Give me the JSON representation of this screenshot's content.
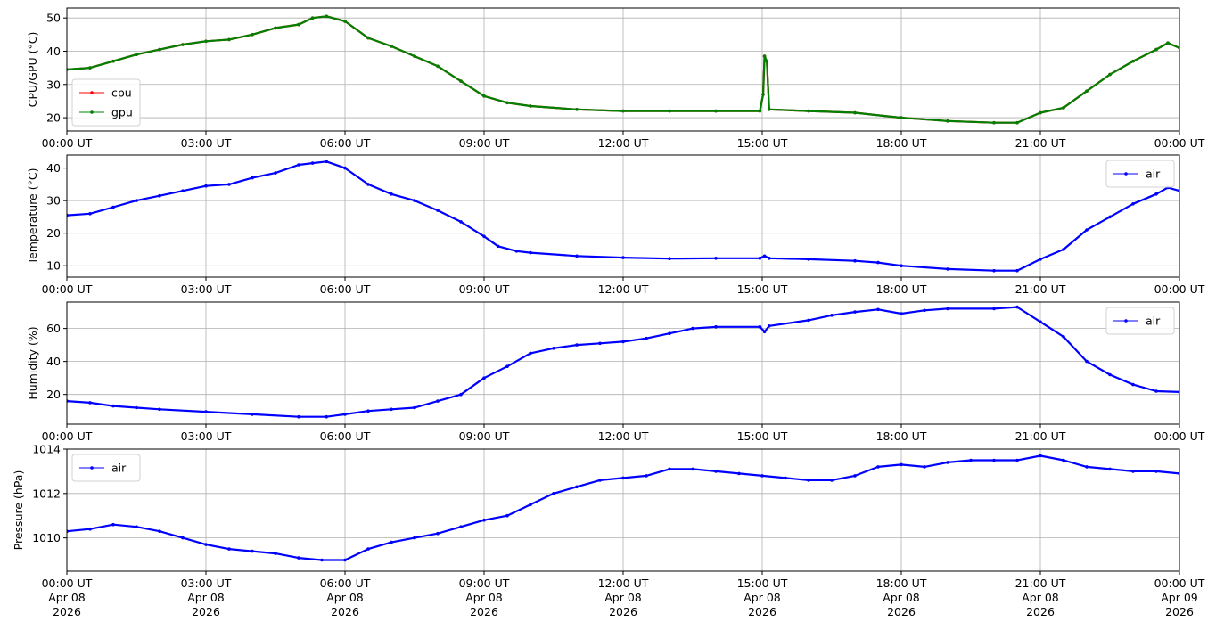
{
  "chart_data": [
    {
      "type": "line",
      "ylabel": "CPU/GPU (°C)",
      "xlim": [
        0,
        24
      ],
      "ylim": [
        16,
        53
      ],
      "yticks": [
        20,
        30,
        40,
        50
      ],
      "grid": true,
      "legend": "lower-left",
      "series": [
        {
          "name": "cpu",
          "color": "#ff0000",
          "points": [
            [
              0,
              34.5
            ],
            [
              0.5,
              35
            ],
            [
              1,
              37
            ],
            [
              1.5,
              39
            ],
            [
              2,
              40.5
            ],
            [
              2.5,
              42
            ],
            [
              3,
              43
            ],
            [
              3.5,
              43.5
            ],
            [
              4,
              45
            ],
            [
              4.5,
              47
            ],
            [
              5,
              48
            ],
            [
              5.3,
              50
            ],
            [
              5.6,
              50.5
            ],
            [
              6,
              49
            ],
            [
              6.5,
              44
            ],
            [
              7,
              41.5
            ],
            [
              7.5,
              38.5
            ],
            [
              8,
              35.5
            ],
            [
              8.5,
              31
            ],
            [
              9,
              26.5
            ],
            [
              9.5,
              24.5
            ],
            [
              10,
              23.5
            ],
            [
              11,
              22.5
            ],
            [
              12,
              22
            ],
            [
              13,
              22
            ],
            [
              14,
              22
            ],
            [
              14.95,
              22
            ],
            [
              15.02,
              27
            ],
            [
              15.05,
              38.5
            ],
            [
              15.1,
              37
            ],
            [
              15.15,
              22.5
            ],
            [
              16,
              22
            ],
            [
              17,
              21.5
            ],
            [
              18,
              20
            ],
            [
              19,
              19
            ],
            [
              20,
              18.5
            ],
            [
              20.5,
              18.5
            ],
            [
              21,
              21.5
            ],
            [
              21.5,
              23
            ],
            [
              22,
              28
            ],
            [
              22.5,
              33
            ],
            [
              23,
              37
            ],
            [
              23.5,
              40.5
            ],
            [
              23.75,
              42.5
            ],
            [
              24,
              41
            ]
          ]
        },
        {
          "name": "gpu",
          "color": "#008000",
          "points": [
            [
              0,
              34.5
            ],
            [
              0.5,
              35
            ],
            [
              1,
              37
            ],
            [
              1.5,
              39
            ],
            [
              2,
              40.5
            ],
            [
              2.5,
              42
            ],
            [
              3,
              43
            ],
            [
              3.5,
              43.5
            ],
            [
              4,
              45
            ],
            [
              4.5,
              47
            ],
            [
              5,
              48
            ],
            [
              5.3,
              50
            ],
            [
              5.6,
              50.5
            ],
            [
              6,
              49
            ],
            [
              6.5,
              44
            ],
            [
              7,
              41.5
            ],
            [
              7.5,
              38.5
            ],
            [
              8,
              35.5
            ],
            [
              8.5,
              31
            ],
            [
              9,
              26.5
            ],
            [
              9.5,
              24.5
            ],
            [
              10,
              23.5
            ],
            [
              11,
              22.5
            ],
            [
              12,
              22
            ],
            [
              13,
              22
            ],
            [
              14,
              22
            ],
            [
              14.95,
              22
            ],
            [
              15.02,
              27
            ],
            [
              15.05,
              38.5
            ],
            [
              15.1,
              37
            ],
            [
              15.15,
              22.5
            ],
            [
              16,
              22
            ],
            [
              17,
              21.5
            ],
            [
              18,
              20
            ],
            [
              19,
              19
            ],
            [
              20,
              18.5
            ],
            [
              20.5,
              18.5
            ],
            [
              21,
              21.5
            ],
            [
              21.5,
              23
            ],
            [
              22,
              28
            ],
            [
              22.5,
              33
            ],
            [
              23,
              37
            ],
            [
              23.5,
              40.5
            ],
            [
              23.75,
              42.5
            ],
            [
              24,
              41
            ]
          ]
        }
      ]
    },
    {
      "type": "line",
      "ylabel": "Temperature (°C)",
      "xlim": [
        0,
        24
      ],
      "ylim": [
        6.5,
        44
      ],
      "yticks": [
        10,
        20,
        30,
        40
      ],
      "grid": true,
      "legend": "top-right",
      "series": [
        {
          "name": "air",
          "color": "#0000ff",
          "points": [
            [
              0,
              25.5
            ],
            [
              0.5,
              26
            ],
            [
              1,
              28
            ],
            [
              1.5,
              30
            ],
            [
              2,
              31.5
            ],
            [
              2.5,
              33
            ],
            [
              3,
              34.5
            ],
            [
              3.5,
              35
            ],
            [
              4,
              37
            ],
            [
              4.5,
              38.5
            ],
            [
              5,
              41
            ],
            [
              5.3,
              41.5
            ],
            [
              5.6,
              42
            ],
            [
              6,
              40
            ],
            [
              6.5,
              35
            ],
            [
              7,
              32
            ],
            [
              7.5,
              30
            ],
            [
              8,
              27
            ],
            [
              8.5,
              23.5
            ],
            [
              9,
              19
            ],
            [
              9.3,
              16
            ],
            [
              9.7,
              14.5
            ],
            [
              10,
              14
            ],
            [
              11,
              13
            ],
            [
              12,
              12.5
            ],
            [
              13,
              12.2
            ],
            [
              14,
              12.3
            ],
            [
              14.95,
              12.3
            ],
            [
              15.05,
              13
            ],
            [
              15.15,
              12.3
            ],
            [
              16,
              12
            ],
            [
              17,
              11.5
            ],
            [
              17.5,
              11
            ],
            [
              18,
              10
            ],
            [
              19,
              9
            ],
            [
              20,
              8.5
            ],
            [
              20.5,
              8.5
            ],
            [
              21,
              12
            ],
            [
              21.5,
              15
            ],
            [
              22,
              21
            ],
            [
              22.5,
              25
            ],
            [
              23,
              29
            ],
            [
              23.5,
              32
            ],
            [
              23.75,
              34
            ],
            [
              24,
              33
            ]
          ]
        }
      ]
    },
    {
      "type": "line",
      "ylabel": "Humidity (%)",
      "xlim": [
        0,
        24
      ],
      "ylim": [
        2,
        76
      ],
      "yticks": [
        20,
        40,
        60
      ],
      "grid": true,
      "legend": "top-right",
      "series": [
        {
          "name": "air",
          "color": "#0000ff",
          "points": [
            [
              0,
              16
            ],
            [
              0.5,
              15
            ],
            [
              1,
              13
            ],
            [
              1.5,
              12
            ],
            [
              2,
              11
            ],
            [
              3,
              9.5
            ],
            [
              4,
              8
            ],
            [
              5,
              6.5
            ],
            [
              5.6,
              6.5
            ],
            [
              6,
              8
            ],
            [
              6.5,
              10
            ],
            [
              7,
              11
            ],
            [
              7.5,
              12
            ],
            [
              8,
              16
            ],
            [
              8.5,
              20
            ],
            [
              9,
              30
            ],
            [
              9.5,
              37
            ],
            [
              10,
              45
            ],
            [
              10.5,
              48
            ],
            [
              11,
              50
            ],
            [
              11.5,
              51
            ],
            [
              12,
              52
            ],
            [
              12.5,
              54
            ],
            [
              13,
              57
            ],
            [
              13.5,
              60
            ],
            [
              14,
              61
            ],
            [
              14.95,
              61
            ],
            [
              15.05,
              58
            ],
            [
              15.15,
              61.5
            ],
            [
              16,
              65
            ],
            [
              16.5,
              68
            ],
            [
              17,
              70
            ],
            [
              17.5,
              71.5
            ],
            [
              18,
              69
            ],
            [
              18.5,
              71
            ],
            [
              19,
              72
            ],
            [
              20,
              72
            ],
            [
              20.5,
              73
            ],
            [
              21,
              64
            ],
            [
              21.5,
              55
            ],
            [
              22,
              40
            ],
            [
              22.5,
              32
            ],
            [
              23,
              26
            ],
            [
              23.5,
              22
            ],
            [
              24,
              21.5
            ]
          ]
        }
      ]
    },
    {
      "type": "line",
      "ylabel": "Pressure (hPa)",
      "xlim": [
        0,
        24
      ],
      "ylim": [
        1008.5,
        1014
      ],
      "yticks": [
        1010,
        1012,
        1014
      ],
      "grid": true,
      "legend": "top-left",
      "series": [
        {
          "name": "air",
          "color": "#0000ff",
          "points": [
            [
              0,
              1010.3
            ],
            [
              0.5,
              1010.4
            ],
            [
              1,
              1010.6
            ],
            [
              1.5,
              1010.5
            ],
            [
              2,
              1010.3
            ],
            [
              2.5,
              1010.0
            ],
            [
              3,
              1009.7
            ],
            [
              3.5,
              1009.5
            ],
            [
              4,
              1009.4
            ],
            [
              4.5,
              1009.3
            ],
            [
              5,
              1009.1
            ],
            [
              5.5,
              1009.0
            ],
            [
              6,
              1009.0
            ],
            [
              6.5,
              1009.5
            ],
            [
              7,
              1009.8
            ],
            [
              7.5,
              1010.0
            ],
            [
              8,
              1010.2
            ],
            [
              8.5,
              1010.5
            ],
            [
              9,
              1010.8
            ],
            [
              9.5,
              1011.0
            ],
            [
              10,
              1011.5
            ],
            [
              10.5,
              1012.0
            ],
            [
              11,
              1012.3
            ],
            [
              11.5,
              1012.6
            ],
            [
              12,
              1012.7
            ],
            [
              12.5,
              1012.8
            ],
            [
              13,
              1013.1
            ],
            [
              13.5,
              1013.1
            ],
            [
              14,
              1013.0
            ],
            [
              14.5,
              1012.9
            ],
            [
              15,
              1012.8
            ],
            [
              15.5,
              1012.7
            ],
            [
              16,
              1012.6
            ],
            [
              16.5,
              1012.6
            ],
            [
              17,
              1012.8
            ],
            [
              17.5,
              1013.2
            ],
            [
              18,
              1013.3
            ],
            [
              18.5,
              1013.2
            ],
            [
              19,
              1013.4
            ],
            [
              19.5,
              1013.5
            ],
            [
              20,
              1013.5
            ],
            [
              20.5,
              1013.5
            ],
            [
              21,
              1013.7
            ],
            [
              21.5,
              1013.5
            ],
            [
              22,
              1013.2
            ],
            [
              22.5,
              1013.1
            ],
            [
              23,
              1013.0
            ],
            [
              23.5,
              1013.0
            ],
            [
              24,
              1012.9
            ]
          ]
        }
      ]
    }
  ],
  "x_axis": {
    "tick_values": [
      0,
      3,
      6,
      9,
      12,
      15,
      18,
      21,
      24
    ],
    "tick_labels": [
      "00:00 UT",
      "03:00 UT",
      "06:00 UT",
      "09:00 UT",
      "12:00 UT",
      "15:00 UT",
      "18:00 UT",
      "21:00 UT",
      "00:00 UT"
    ],
    "date_labels": [
      [
        "Apr 08",
        "2026"
      ],
      [
        "Apr 08",
        "2026"
      ],
      [
        "Apr 08",
        "2026"
      ],
      [
        "Apr 08",
        "2026"
      ],
      [
        "Apr 08",
        "2026"
      ],
      [
        "Apr 08",
        "2026"
      ],
      [
        "Apr 08",
        "2026"
      ],
      [
        "Apr 08",
        "2026"
      ],
      [
        "Apr 09",
        "2026"
      ]
    ]
  }
}
